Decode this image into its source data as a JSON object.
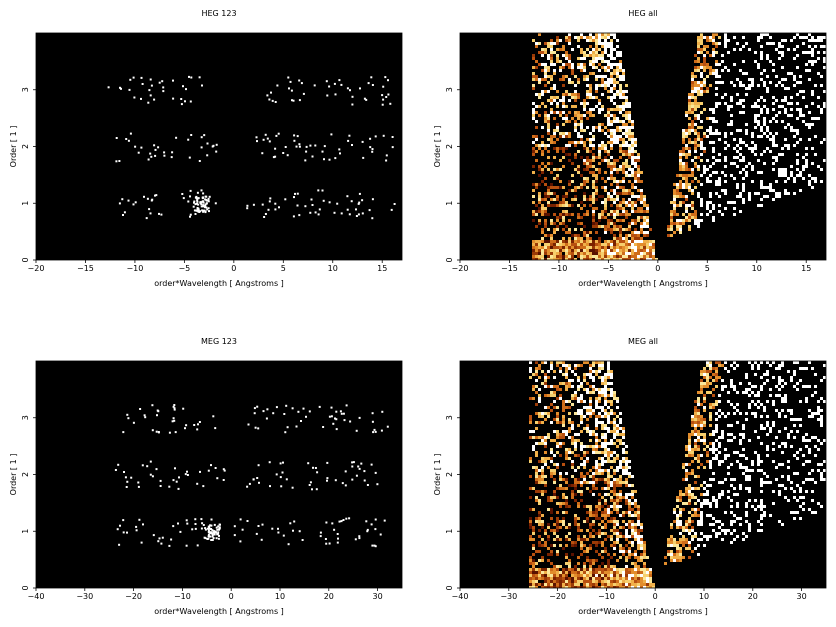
{
  "chart_data": [
    {
      "type": "heatmap",
      "title": "HEG 123",
      "xlabel": "order*Wavelength [ Angstroms ]",
      "ylabel": "Order [ 1 ]",
      "xlim": [
        -20,
        17
      ],
      "ylim": [
        0,
        4
      ],
      "xticks": [
        "−20",
        "−15",
        "−10",
        "−5",
        "0",
        "5",
        "10",
        "15"
      ],
      "xtick_values": [
        -20,
        -15,
        -10,
        -5,
        0,
        5,
        10,
        15
      ],
      "yticks": [
        "0",
        "1",
        "2",
        "3"
      ],
      "ytick_values": [
        0,
        1,
        2,
        3
      ],
      "background": "#000000",
      "colormap": "hot",
      "wedges": false,
      "bands": [
        {
          "order": 1,
          "ranges": [
            [
              -12.2,
              -7.0
            ],
            [
              -6.5,
              -1.8
            ],
            [
              1.2,
              4.8
            ],
            [
              5.0,
              16.2
            ]
          ],
          "cluster": [
            -4.2,
            -2.5
          ]
        },
        {
          "order": 2,
          "ranges": [
            [
              -12.2,
              -7.0
            ],
            [
              -6.5,
              -1.8
            ],
            [
              2.0,
              16.5
            ]
          ],
          "cluster": null
        },
        {
          "order": 3,
          "ranges": [
            [
              -12.8,
              -7.0
            ],
            [
              -6.5,
              -3.0
            ],
            [
              2.8,
              7.5
            ],
            [
              8.0,
              15.8
            ]
          ],
          "cluster": null
        }
      ]
    },
    {
      "type": "heatmap",
      "title": "HEG all",
      "xlabel": "order*Wavelength [ Angstroms ]",
      "ylabel": "Order [ 1 ]",
      "xlim": [
        -20,
        17
      ],
      "ylim": [
        0,
        4
      ],
      "xticks": [
        "−20",
        "−15",
        "−10",
        "−5",
        "0",
        "5",
        "10",
        "15"
      ],
      "xtick_values": [
        -20,
        -15,
        -10,
        -5,
        0,
        5,
        10,
        15
      ],
      "yticks": [
        "0",
        "1",
        "2",
        "3"
      ],
      "ytick_values": [
        0,
        1,
        2,
        3
      ],
      "background": "#000000",
      "colormap": "hot",
      "wedges": true,
      "left_edge": -13.0,
      "left_wedge_inner_top": -4.0,
      "right_wedge_inner_top": 3.8
    },
    {
      "type": "heatmap",
      "title": "MEG 123",
      "xlabel": "order*Wavelength [ Angstroms ]",
      "ylabel": "Order [ 1 ]",
      "xlim": [
        -40,
        35
      ],
      "ylim": [
        0,
        4
      ],
      "xticks": [
        "−40",
        "−30",
        "−20",
        "−10",
        "0",
        "10",
        "20",
        "30"
      ],
      "xtick_values": [
        -40,
        -30,
        -20,
        -10,
        0,
        10,
        20,
        30
      ],
      "yticks": [
        "0",
        "1",
        "2",
        "3"
      ],
      "ytick_values": [
        0,
        1,
        2,
        3
      ],
      "background": "#000000",
      "colormap": "hot",
      "wedges": false,
      "bands": [
        {
          "order": 1,
          "ranges": [
            [
              -23.5,
              -14.0
            ],
            [
              -13.0,
              -1.5
            ],
            [
              0.5,
              6.5
            ],
            [
              8.0,
              32.0
            ]
          ],
          "cluster": [
            -6.0,
            -2.5
          ]
        },
        {
          "order": 2,
          "ranges": [
            [
              -24.0,
              -14.0
            ],
            [
              -13.0,
              -1.5
            ],
            [
              2.0,
              6.5
            ],
            [
              7.0,
              30.0
            ]
          ],
          "cluster": null
        },
        {
          "order": 3,
          "ranges": [
            [
              -23.0,
              -12.0
            ],
            [
              -12.0,
              -3.0
            ],
            [
              3.0,
              14.0
            ],
            [
              14.0,
              32.0
            ]
          ],
          "cluster": null
        }
      ]
    },
    {
      "type": "heatmap",
      "title": "MEG all",
      "xlabel": "order*Wavelength [ Angstroms ]",
      "ylabel": "Order [ 1 ]",
      "xlim": [
        -40,
        35
      ],
      "ylim": [
        0,
        4
      ],
      "xticks": [
        "−40",
        "−30",
        "−20",
        "−10",
        "0",
        "10",
        "20",
        "30"
      ],
      "xtick_values": [
        -40,
        -30,
        -20,
        -10,
        0,
        10,
        20,
        30
      ],
      "yticks": [
        "0",
        "1",
        "2",
        "3"
      ],
      "ytick_values": [
        0,
        1,
        2,
        3
      ],
      "background": "#000000",
      "colormap": "hot",
      "wedges": true,
      "left_edge": -26.0,
      "left_wedge_inner_top": -9.0,
      "right_wedge_inner_top": 9.0
    }
  ]
}
